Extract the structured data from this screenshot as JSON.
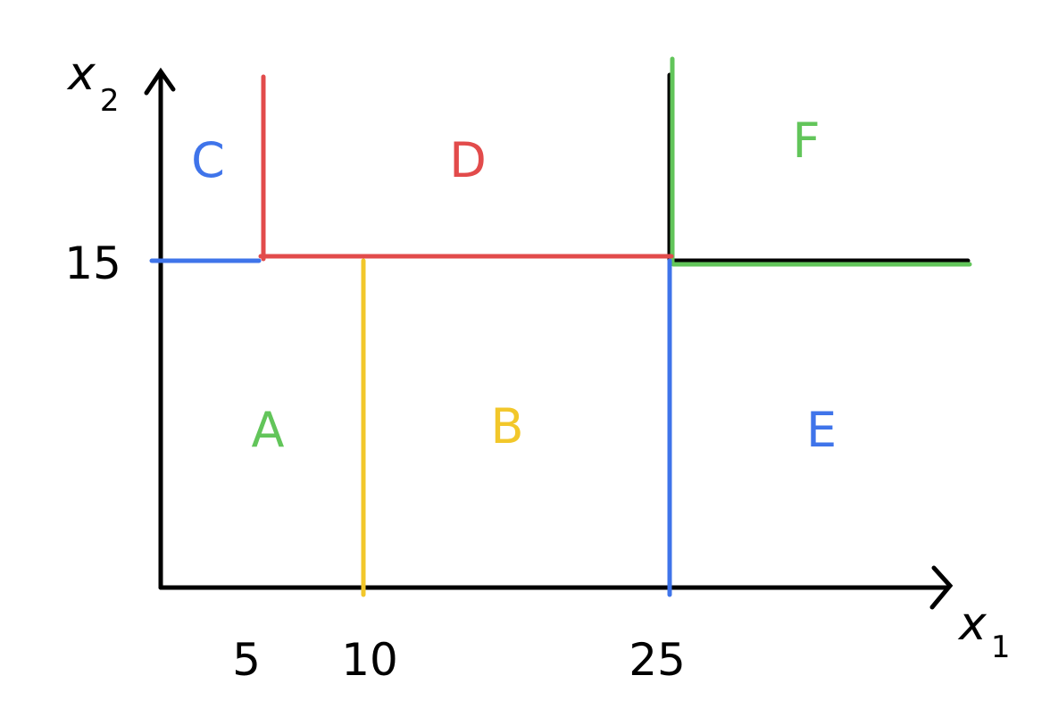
{
  "colors": {
    "axis": "#000000",
    "red": "#e24b4b",
    "blue": "#3f74ea",
    "green": "#62c55a",
    "yellow": "#f2c72a"
  },
  "axes": {
    "x": {
      "symbol": "x",
      "subscript": "1"
    },
    "y": {
      "symbol": "x",
      "subscript": "2"
    }
  },
  "ticks": {
    "x": [
      "5",
      "10",
      "25"
    ],
    "y": [
      "15"
    ]
  },
  "regions": {
    "A": {
      "label": "A",
      "color": "#62c55a"
    },
    "B": {
      "label": "B",
      "color": "#f2c72a"
    },
    "C": {
      "label": "C",
      "color": "#3f74ea"
    },
    "D": {
      "label": "D",
      "color": "#e24b4b"
    },
    "E": {
      "label": "E",
      "color": "#3f74ea"
    },
    "F": {
      "label": "F",
      "color": "#62c55a"
    }
  }
}
